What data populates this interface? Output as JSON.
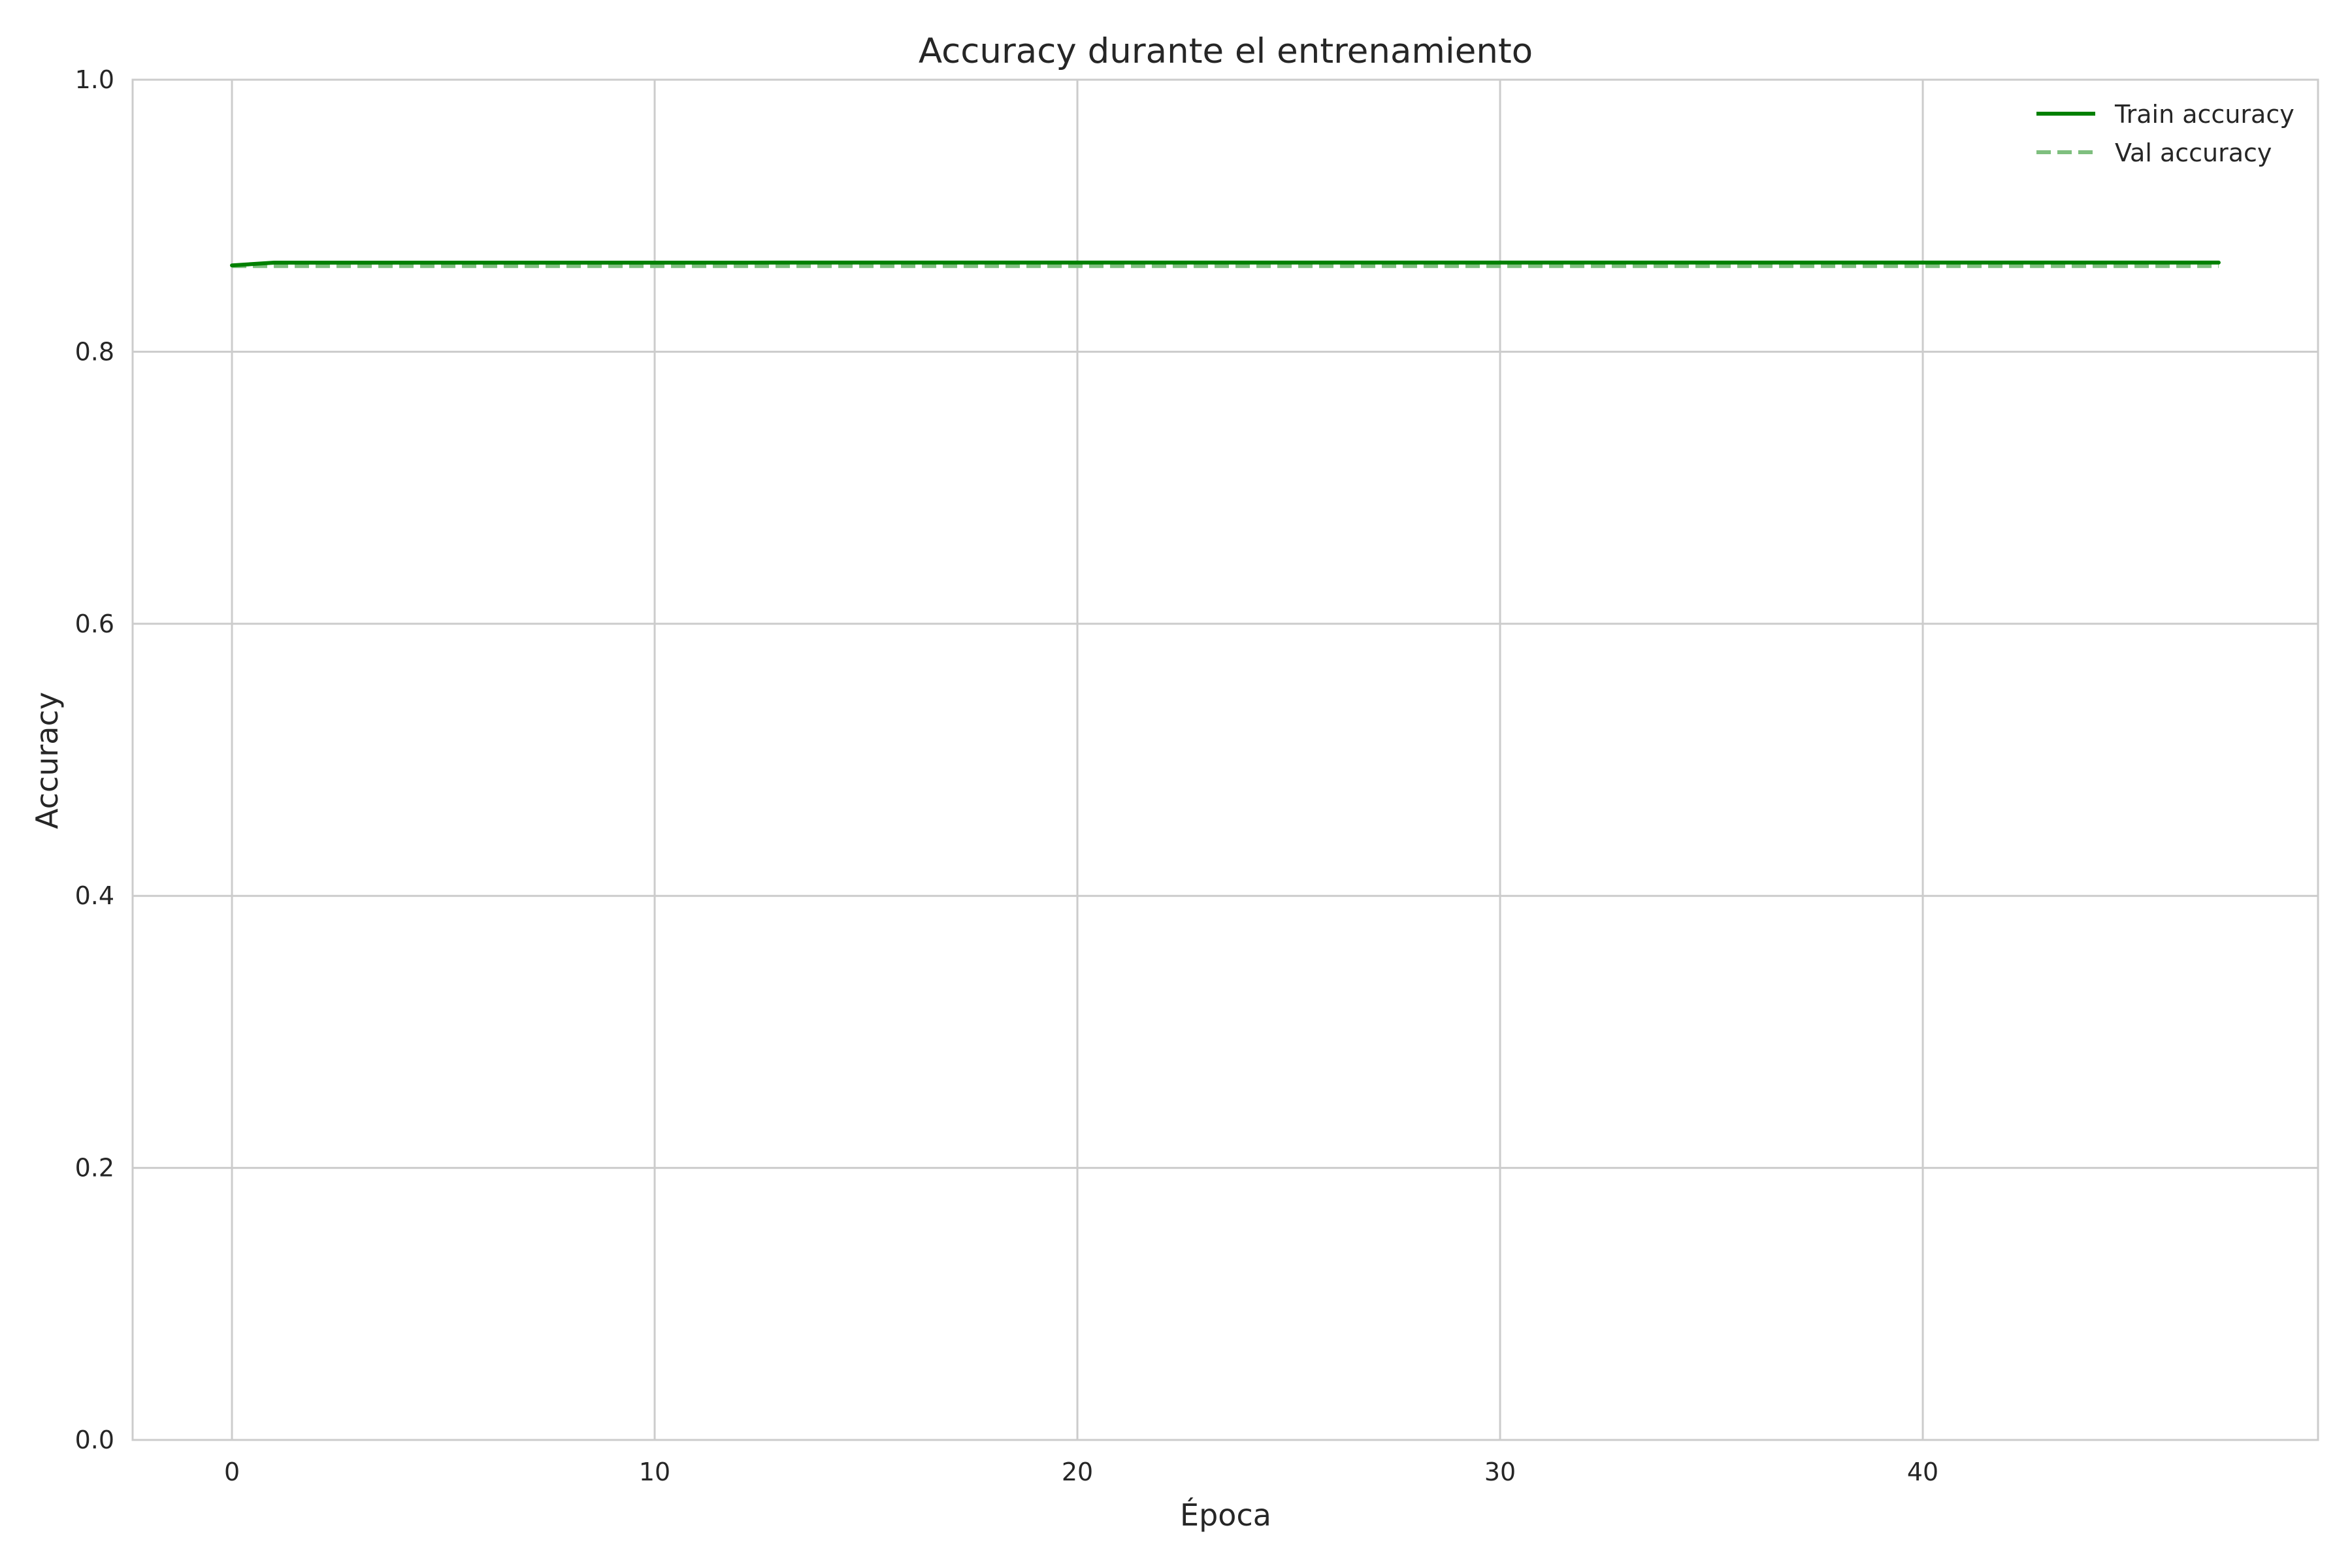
{
  "chart_data": {
    "type": "line",
    "title": "Accuracy durante el entrenamiento",
    "xlabel": "Época",
    "ylabel": "Accuracy",
    "xlim": [
      -2.35,
      49.35
    ],
    "ylim": [
      0.0,
      1.0
    ],
    "xticks": [
      0,
      10,
      20,
      30,
      40
    ],
    "yticks": [
      0.0,
      0.2,
      0.4,
      0.6,
      0.8,
      1.0
    ],
    "xtick_labels": [
      "0",
      "10",
      "20",
      "30",
      "40"
    ],
    "ytick_labels": [
      "0.0",
      "0.2",
      "0.4",
      "0.6",
      "0.8",
      "1.0"
    ],
    "grid": true,
    "legend_position": "top-right",
    "x": [
      0,
      1,
      2,
      3,
      4,
      5,
      6,
      7,
      8,
      9,
      10,
      11,
      12,
      13,
      14,
      15,
      16,
      17,
      18,
      19,
      20,
      21,
      22,
      23,
      24,
      25,
      26,
      27,
      28,
      29,
      30,
      31,
      32,
      33,
      34,
      35,
      36,
      37,
      38,
      39,
      40,
      41,
      42,
      43,
      44,
      45,
      46,
      47
    ],
    "series": [
      {
        "name": "Train accuracy",
        "color": "#008000",
        "style": "solid",
        "values": [
          0.8635,
          0.8655,
          0.8655,
          0.8655,
          0.8655,
          0.8655,
          0.8655,
          0.8655,
          0.8655,
          0.8655,
          0.8655,
          0.8655,
          0.8655,
          0.8656,
          0.8656,
          0.8656,
          0.8656,
          0.8656,
          0.8656,
          0.8656,
          0.8656,
          0.8656,
          0.8656,
          0.8656,
          0.8656,
          0.8656,
          0.8656,
          0.8656,
          0.8656,
          0.8656,
          0.8656,
          0.8656,
          0.8656,
          0.8656,
          0.8656,
          0.8656,
          0.8656,
          0.8656,
          0.8656,
          0.8656,
          0.8656,
          0.8656,
          0.8656,
          0.8656,
          0.8656,
          0.8656,
          0.8656,
          0.8656
        ]
      },
      {
        "name": "Val accuracy",
        "color": "#7fbf7f",
        "style": "dashed",
        "values": [
          0.863,
          0.863,
          0.863,
          0.863,
          0.863,
          0.863,
          0.863,
          0.863,
          0.863,
          0.863,
          0.863,
          0.863,
          0.863,
          0.863,
          0.863,
          0.863,
          0.863,
          0.863,
          0.863,
          0.863,
          0.863,
          0.863,
          0.863,
          0.863,
          0.863,
          0.863,
          0.863,
          0.863,
          0.863,
          0.863,
          0.863,
          0.863,
          0.863,
          0.863,
          0.863,
          0.863,
          0.863,
          0.863,
          0.863,
          0.863,
          0.863,
          0.863,
          0.863,
          0.863,
          0.863,
          0.863,
          0.863,
          0.863
        ]
      }
    ]
  }
}
